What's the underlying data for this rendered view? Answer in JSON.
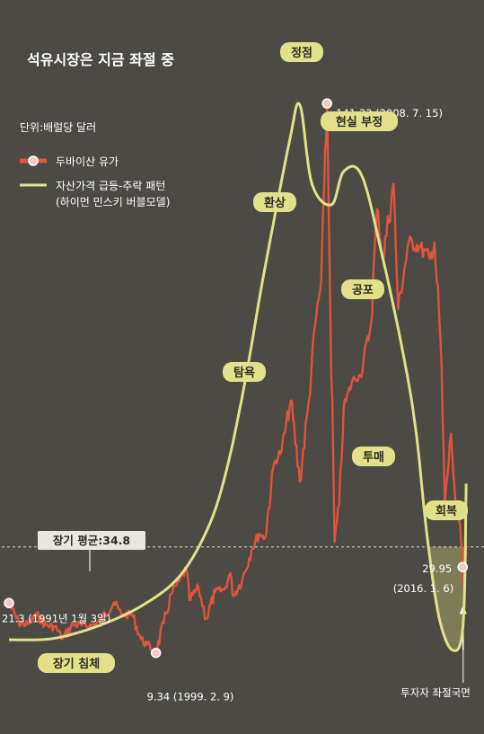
{
  "chart_data": {
    "type": "line",
    "title": "석유시장은 지금 좌절 중",
    "unit": "단위:배럴당 달러",
    "x_range": [
      "1991-01-03",
      "2016-03-31"
    ],
    "y_range": [
      0,
      150
    ],
    "colors": {
      "oil": "#e0553c",
      "pattern": "#e3e08a",
      "avg": "#d8d8d8"
    },
    "series": [
      {
        "name": "두바이산 유가",
        "points": [
          [
            "1991-01-03",
            21.3
          ],
          [
            "1991-07",
            16.5
          ],
          [
            "1992-01",
            16.2
          ],
          [
            "1992-07",
            18.4
          ],
          [
            "1993-01",
            16.0
          ],
          [
            "1993-07",
            15.6
          ],
          [
            "1993-12",
            12.8
          ],
          [
            "1994-07",
            16.2
          ],
          [
            "1995-01",
            16.0
          ],
          [
            "1995-07",
            15.8
          ],
          [
            "1996-01",
            17.0
          ],
          [
            "1996-10",
            21.5
          ],
          [
            "1997-03",
            18.5
          ],
          [
            "1997-10",
            18.6
          ],
          [
            "1998-04",
            12.6
          ],
          [
            "1998-08",
            11.3
          ],
          [
            "1998-12",
            10.0
          ],
          [
            "1999-02-09",
            9.34
          ],
          [
            "1999-07",
            16.5
          ],
          [
            "1999-12",
            23.5
          ],
          [
            "2000-05",
            26.5
          ],
          [
            "2000-10",
            29.5
          ],
          [
            "2000-12",
            22.0
          ],
          [
            "2001-06",
            25.0
          ],
          [
            "2001-11",
            17.5
          ],
          [
            "2002-05",
            24.0
          ],
          [
            "2002-11",
            24.5
          ],
          [
            "2003-03",
            28.5
          ],
          [
            "2003-05",
            23.0
          ],
          [
            "2003-11",
            27.0
          ],
          [
            "2004-05",
            34.0
          ],
          [
            "2004-10",
            38.0
          ],
          [
            "2005-02",
            37.0
          ],
          [
            "2005-08",
            55.0
          ],
          [
            "2006-01",
            58.0
          ],
          [
            "2006-07",
            70.0
          ],
          [
            "2007-01",
            50.5
          ],
          [
            "2007-07",
            70.0
          ],
          [
            "2007-11",
            88.0
          ],
          [
            "2008-03",
            98.0
          ],
          [
            "2008-05",
            120.0
          ],
          [
            "2008-07-15",
            141.33
          ],
          [
            "2008-09",
            95.0
          ],
          [
            "2008-12",
            36.0
          ],
          [
            "2009-03",
            45.0
          ],
          [
            "2009-06",
            68.0
          ],
          [
            "2009-12",
            75.0
          ],
          [
            "2010-05",
            76.0
          ],
          [
            "2010-12",
            88.0
          ],
          [
            "2011-04",
            116.0
          ],
          [
            "2011-08",
            104.0
          ],
          [
            "2012-03",
            122.0
          ],
          [
            "2012-06",
            92.0
          ],
          [
            "2013-01",
            108.0
          ],
          [
            "2013-08",
            107.0
          ],
          [
            "2014-03",
            104.0
          ],
          [
            "2014-06",
            108.0
          ],
          [
            "2014-10",
            85.0
          ],
          [
            "2015-01",
            45.0
          ],
          [
            "2015-05",
            62.0
          ],
          [
            "2015-08",
            45.0
          ],
          [
            "2015-11",
            40.0
          ],
          [
            "2016-01-06",
            29.95
          ],
          [
            "2016-01-21",
            25.0
          ],
          [
            "2016-03",
            35.0
          ]
        ]
      },
      {
        "name": "자산가격 급등-추락 패턴",
        "name_sub": "(하이먼 민스키 버블모델)",
        "points": [
          [
            "1991-01-03",
            12.5
          ],
          [
            "1993-06",
            12.8
          ],
          [
            "1996-01",
            16.0
          ],
          [
            "1998-06",
            21.0
          ],
          [
            "2000-06",
            28.0
          ],
          [
            "2002-01",
            40.0
          ],
          [
            "2003-01",
            54.0
          ],
          [
            "2004-01",
            75.0
          ],
          [
            "2005-01",
            100.0
          ],
          [
            "2006-06",
            132.0
          ],
          [
            "2007-01",
            141.0
          ],
          [
            "2007-09",
            122.0
          ],
          [
            "2008-10",
            117.0
          ],
          [
            "2009-06",
            125.0
          ],
          [
            "2010-06",
            124.0
          ],
          [
            "2011-08",
            104.0
          ],
          [
            "2012-10",
            80.0
          ],
          [
            "2013-06",
            62.0
          ],
          [
            "2014-01",
            38.0
          ],
          [
            "2014-09",
            18.0
          ],
          [
            "2015-06",
            10.0
          ],
          [
            "2016-01",
            16.0
          ],
          [
            "2016-03",
            50.0
          ]
        ]
      }
    ],
    "long_term_average": {
      "label": "장기 평균:34.8",
      "value": 34.8
    },
    "points_labeled": [
      {
        "label": "21.3 (1991년 1월 3일)",
        "x": "1991-01-03",
        "y": 21.3
      },
      {
        "label": "9.34 (1999. 2. 9)",
        "x": "1999-02-09",
        "y": 9.34
      },
      {
        "label": "141.33 (2008. 7. 15)",
        "x": "2008-07-15",
        "y": 141.33
      },
      {
        "label": "29.95",
        "label2": "(2016. 1. 6)",
        "x": "2016-01-06",
        "y": 29.95
      }
    ],
    "stages": [
      "장기 침체",
      "탐욕",
      "환상",
      "정점",
      "현실 부정",
      "공포",
      "투매",
      "회복"
    ],
    "annotation_bottom": "투자자 좌절국면"
  }
}
